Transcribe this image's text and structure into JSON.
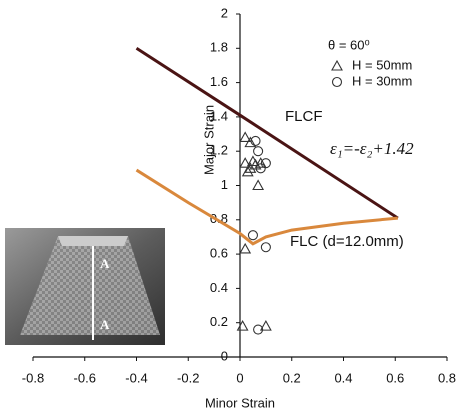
{
  "chart_data": {
    "type": "line",
    "xlabel": "Minor Strain",
    "ylabel": "Major Strain",
    "xlim": [
      -0.8,
      0.8
    ],
    "xticks": [
      -0.8,
      -0.6,
      -0.4,
      -0.2,
      0,
      0.2,
      0.4,
      0.6,
      0.8
    ],
    "ylim": [
      0,
      2
    ],
    "yticks": [
      0,
      0.2,
      0.4,
      0.6,
      0.8,
      1,
      1.2,
      1.4,
      1.6,
      1.8,
      2
    ],
    "grid": false,
    "annotations": [
      "θ = 60⁰",
      "ε₁=-ε₂+1.42"
    ],
    "inset_labels": [
      "A",
      "A"
    ],
    "series": [
      {
        "name": "FLCF",
        "type": "line",
        "color": "#4a1414",
        "x": [
          -0.4,
          0,
          0.61
        ],
        "values": [
          1.8,
          1.41,
          0.81
        ]
      },
      {
        "name": "FLC (d=12.0mm)",
        "type": "line",
        "color": "#d9883c",
        "x": [
          -0.4,
          -0.2,
          0,
          0.05,
          0.1,
          0.2,
          0.4,
          0.61
        ],
        "values": [
          1.09,
          0.9,
          0.72,
          0.66,
          0.7,
          0.74,
          0.78,
          0.81
        ]
      },
      {
        "name": "H = 50mm",
        "type": "scatter",
        "marker": "triangle",
        "color": "#333333",
        "x": [
          0.02,
          0.04,
          0.02,
          0.04,
          0.05,
          0.06,
          0.08,
          0.03,
          0.07,
          0.02,
          0.01,
          0.1
        ],
        "values": [
          1.28,
          1.25,
          1.13,
          1.1,
          1.14,
          1.12,
          1.13,
          1.08,
          1.0,
          0.63,
          0.18,
          0.18
        ]
      },
      {
        "name": "H = 30mm",
        "type": "scatter",
        "marker": "circle",
        "color": "#333333",
        "x": [
          0.06,
          0.07,
          0.1,
          0.08,
          0.05,
          0.1,
          0.07
        ],
        "values": [
          1.26,
          1.2,
          1.13,
          1.1,
          0.71,
          0.64,
          0.16
        ]
      }
    ]
  }
}
